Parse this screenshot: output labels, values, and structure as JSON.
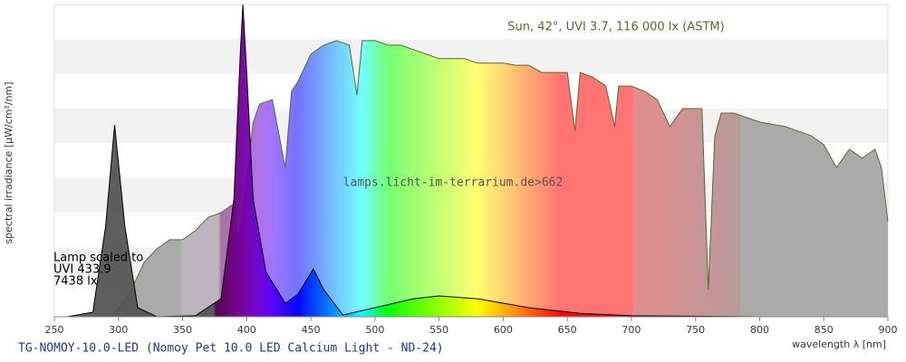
{
  "chart_data": {
    "type": "area",
    "title": "TG-NOMOY-10.0-LED (Nomoy Pet 10.0 LED Calcium Light - ND-24)",
    "x_label": "wavelength λ [nm]",
    "y_label": "spectral irradiance [µW/cm²/nm]",
    "sun_note": "Sun, 42°, UVI 3.7, 116 000 lx (ASTM)",
    "watermark": "lamps.licht-im-terrarium.de>662",
    "lamp_note": [
      "Lamp scaled to",
      "UVI 433.9",
      "7438 lx"
    ],
    "xlim": [
      250,
      900
    ],
    "xticks": [
      250,
      300,
      350,
      400,
      450,
      500,
      550,
      600,
      650,
      700,
      750,
      800,
      850,
      900
    ],
    "ylim": [
      0,
      9
    ],
    "series": [
      {
        "color": "#556b2f",
        "x": [
          295,
          300,
          310,
          320,
          330,
          340,
          350,
          360,
          370,
          380,
          390,
          393,
          397,
          405,
          410,
          420,
          430,
          435,
          440,
          450,
          460,
          470,
          480,
          486,
          490,
          500,
          510,
          520,
          530,
          540,
          550,
          560,
          570,
          580,
          590,
          600,
          610,
          620,
          630,
          640,
          650,
          656,
          660,
          670,
          680,
          687,
          690,
          700,
          710,
          720,
          730,
          740,
          750,
          755,
          760,
          765,
          770,
          780,
          800,
          820,
          840,
          850,
          860,
          870,
          880,
          890,
          895,
          900
        ],
        "values": [
          0,
          0.26,
          0.78,
          1.57,
          1.96,
          2.22,
          2.22,
          2.48,
          2.87,
          3.0,
          3.26,
          2.09,
          3.0,
          5.6,
          6.13,
          6.26,
          4.3,
          6.5,
          6.78,
          7.57,
          7.83,
          7.96,
          7.83,
          6.39,
          7.96,
          7.96,
          7.83,
          7.83,
          7.7,
          7.57,
          7.44,
          7.44,
          7.44,
          7.31,
          7.31,
          7.31,
          7.25,
          7.25,
          7.04,
          7.04,
          7.04,
          5.35,
          7.04,
          6.9,
          6.65,
          5.48,
          6.65,
          6.65,
          6.5,
          6.26,
          5.48,
          6.0,
          6.0,
          6.0,
          0.78,
          5.2,
          5.87,
          5.87,
          5.61,
          5.48,
          5.22,
          4.96,
          4.3,
          4.83,
          4.57,
          4.83,
          4.3,
          2.74
        ]
      },
      {
        "color": "#000000",
        "x": [
          260,
          280,
          290,
          297,
          305,
          315,
          330,
          360,
          380,
          390,
          395,
          397,
          400,
          405,
          415,
          430,
          440,
          452,
          460,
          475,
          500,
          530,
          550,
          580,
          620,
          660,
          700,
          800,
          900
        ],
        "values": [
          0,
          0.13,
          2.61,
          5.53,
          2.61,
          0.26,
          0,
          0.03,
          0.52,
          3.39,
          7.57,
          9.0,
          7.04,
          3.39,
          1.3,
          0.39,
          0.65,
          1.38,
          0.78,
          0.05,
          0.26,
          0.52,
          0.6,
          0.52,
          0.26,
          0.1,
          0.03,
          0,
          0
        ]
      }
    ]
  }
}
